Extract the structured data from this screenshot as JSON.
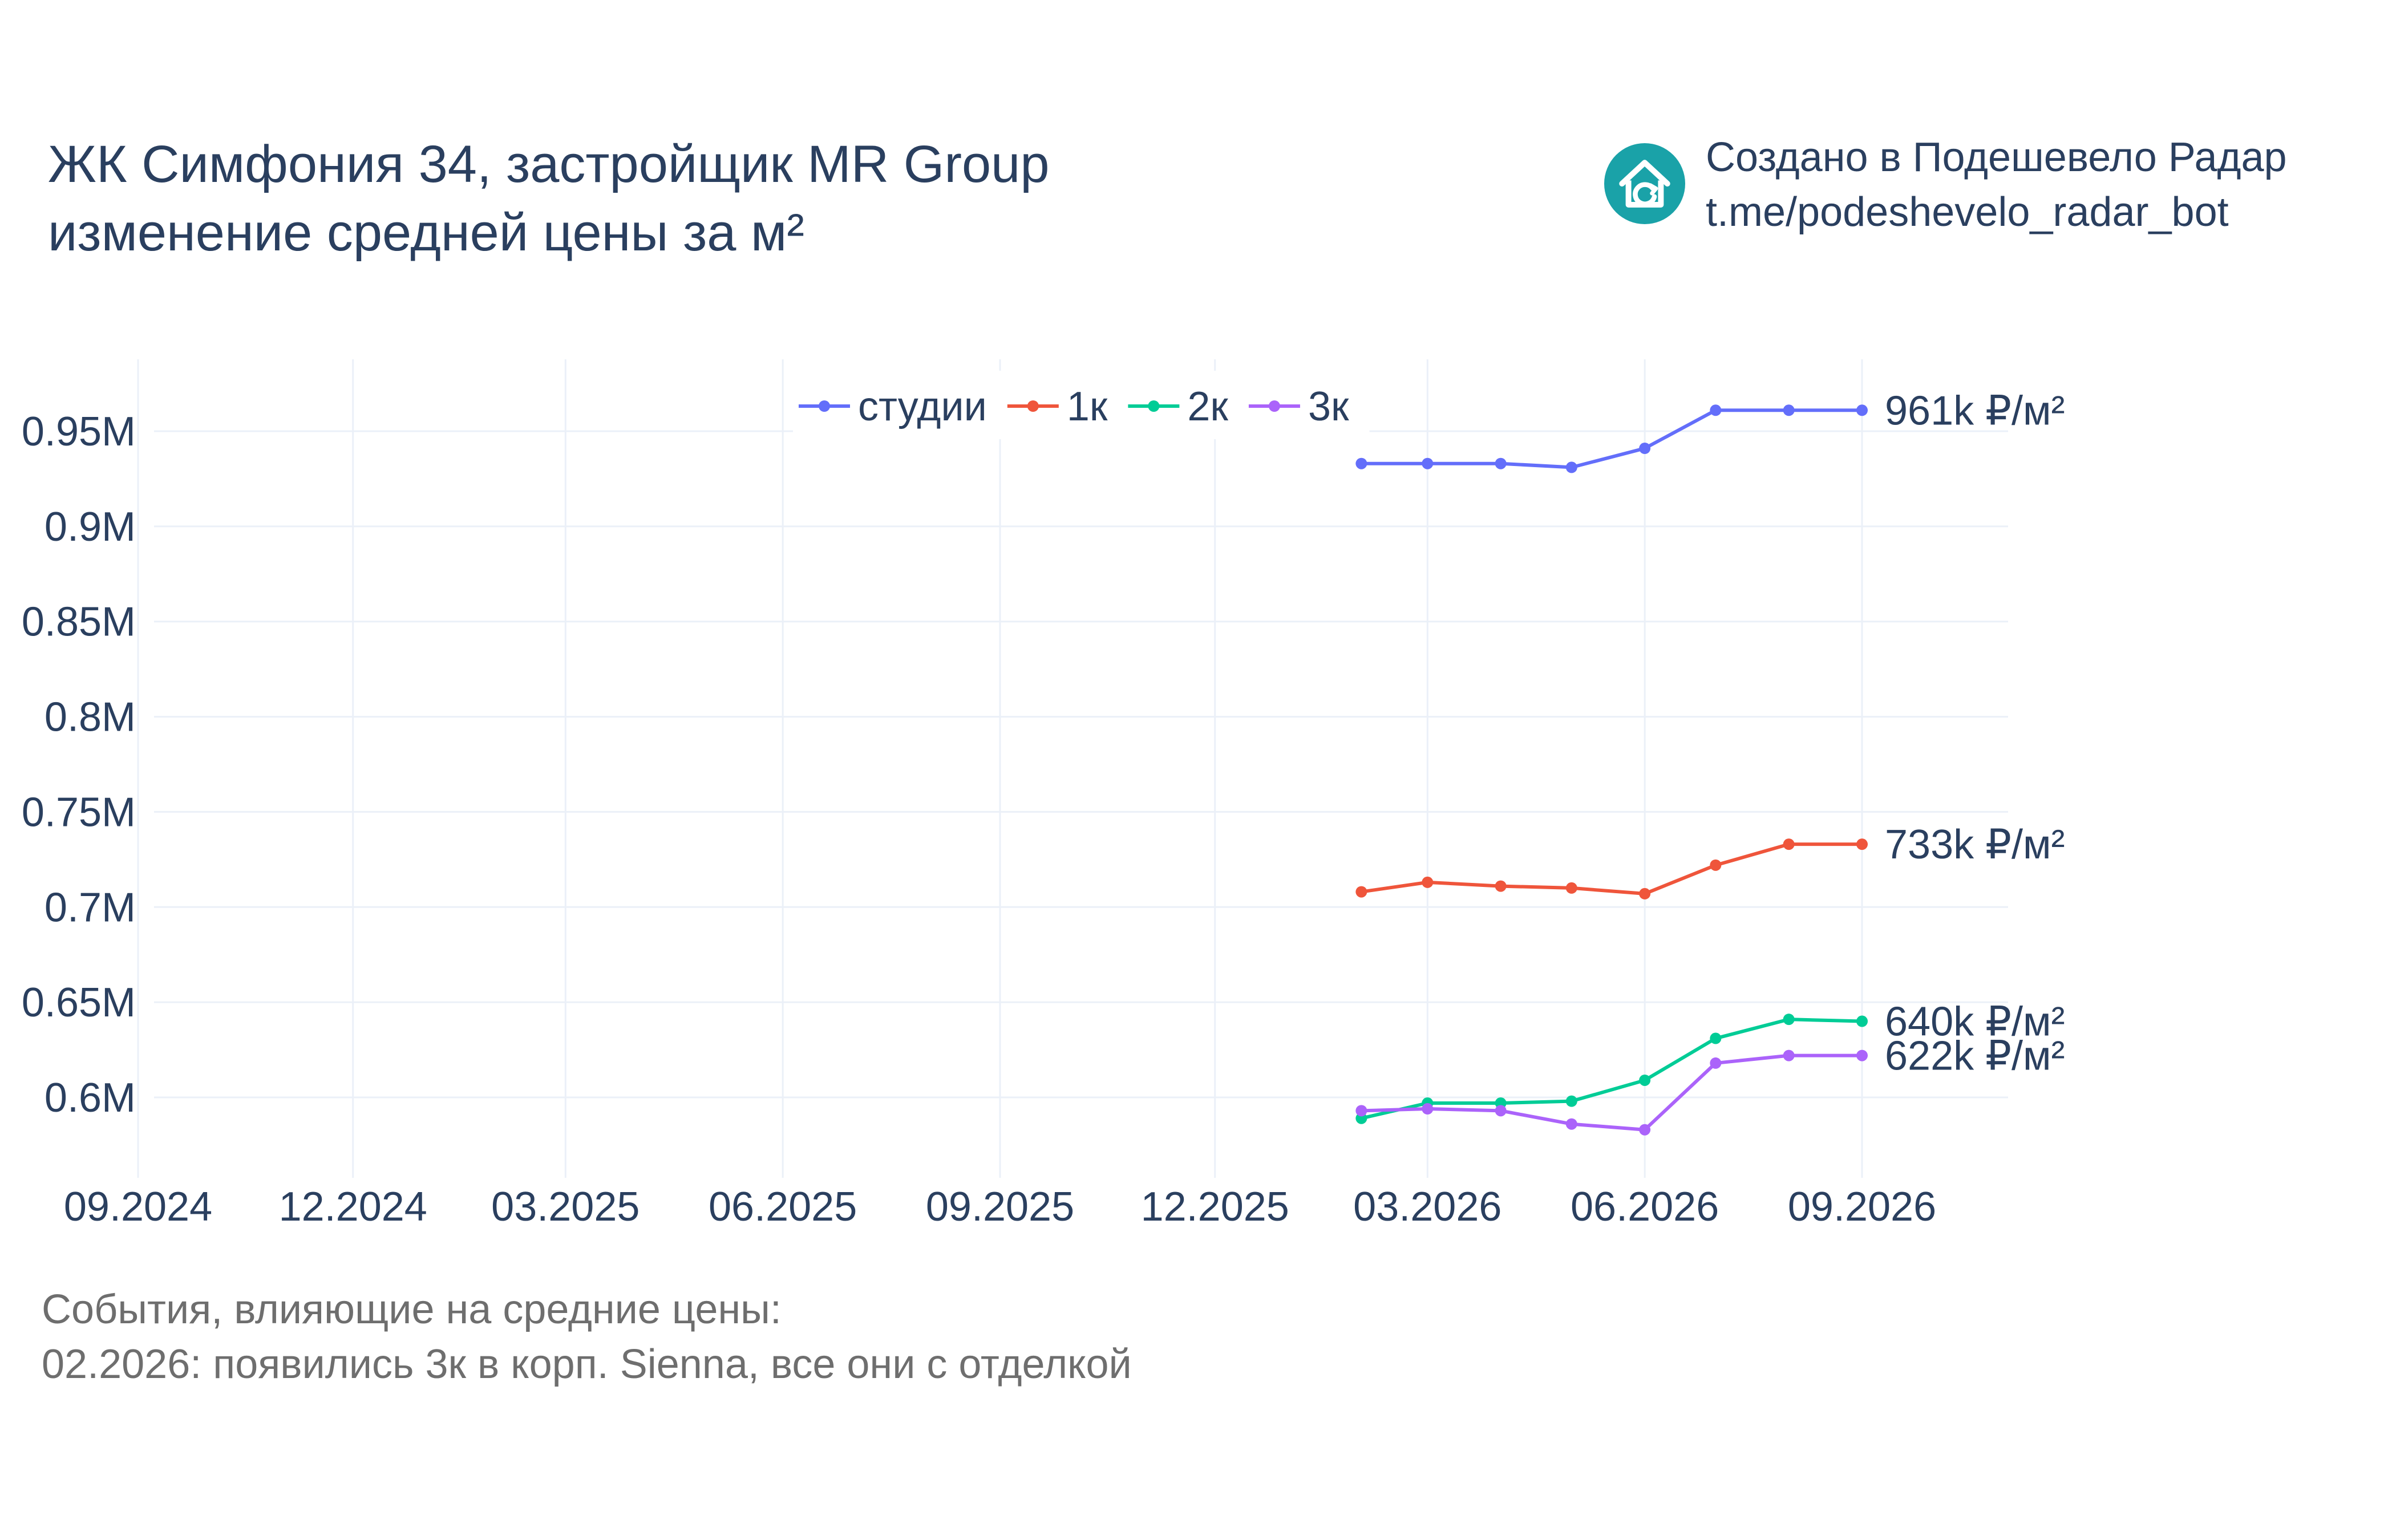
{
  "title_lines": [
    "ЖК Симфония 34, застройщик MR Group",
    "изменение средней цены за м²"
  ],
  "credit_lines": [
    "Создано в Подешевело Радар",
    "t.me/podeshevelo_radar_bot"
  ],
  "events": {
    "heading": "События, влияющие на средние цены:",
    "items": [
      "02.2026: появились 3к в корп. Sienna, все они с отделкой"
    ]
  },
  "colors": {
    "logo": "#1aa2a8",
    "text": "#2a3f5f",
    "grid": "#ebf0f8"
  },
  "chart_data": {
    "type": "line",
    "x": [
      "2026-02-01",
      "2026-03-01",
      "2026-04-01",
      "2026-05-01",
      "2026-06-01",
      "2026-07-01",
      "2026-08-01",
      "2026-09-01"
    ],
    "x_range": [
      "2024-09-01",
      "2026-09-30"
    ],
    "x_ticks": [
      {
        "date": "2024-09-01",
        "label": "09.2024"
      },
      {
        "date": "2024-12-01",
        "label": "12.2024"
      },
      {
        "date": "2025-03-01",
        "label": "03.2025"
      },
      {
        "date": "2025-06-01",
        "label": "06.2025"
      },
      {
        "date": "2025-09-01",
        "label": "09.2025"
      },
      {
        "date": "2025-12-01",
        "label": "12.2025"
      },
      {
        "date": "2026-03-01",
        "label": "03.2026"
      },
      {
        "date": "2026-06-01",
        "label": "06.2026"
      },
      {
        "date": "2026-09-01",
        "label": "09.2026"
      }
    ],
    "ylim": [
      565000,
      990000
    ],
    "y_ticks": [
      {
        "value": 600000,
        "label": "0.6M"
      },
      {
        "value": 650000,
        "label": "0.65M"
      },
      {
        "value": 700000,
        "label": "0.7M"
      },
      {
        "value": 750000,
        "label": "0.75M"
      },
      {
        "value": 800000,
        "label": "0.8M"
      },
      {
        "value": 850000,
        "label": "0.85M"
      },
      {
        "value": 900000,
        "label": "0.9M"
      },
      {
        "value": 950000,
        "label": "0.95M"
      }
    ],
    "grid": true,
    "legend_position": "top-center",
    "series": [
      {
        "name": "студии",
        "color": "#636efa",
        "values": [
          933000,
          933000,
          933000,
          931000,
          941000,
          961000,
          961000,
          961000
        ],
        "end_label": "961k ₽/м²"
      },
      {
        "name": "1к",
        "color": "#ef553b",
        "values": [
          708000,
          713000,
          711000,
          710000,
          707000,
          722000,
          733000,
          733000
        ],
        "end_label": "733k ₽/м²"
      },
      {
        "name": "2к",
        "color": "#00cc96",
        "values": [
          589000,
          597000,
          597000,
          598000,
          609000,
          631000,
          641000,
          640000
        ],
        "end_label": "640k ₽/м²"
      },
      {
        "name": "3к",
        "color": "#ab63fa",
        "values": [
          593000,
          594000,
          593000,
          586000,
          583000,
          618000,
          622000,
          622000
        ],
        "end_label": "622k ₽/м²"
      }
    ]
  }
}
